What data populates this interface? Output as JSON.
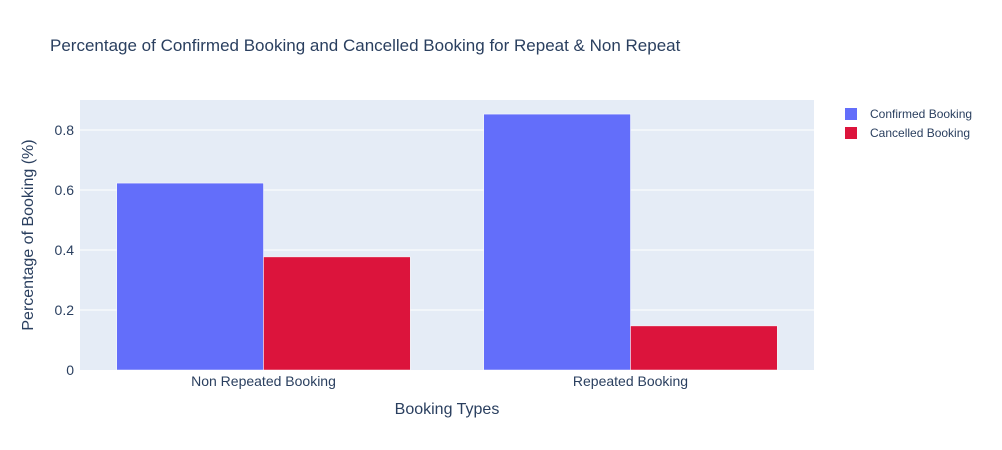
{
  "chart_data": {
    "type": "bar",
    "title": "Percentage of Confirmed Booking and Cancelled Booking for Repeat & Non Repeat",
    "xlabel": "Booking Types",
    "ylabel": "Percentage of Booking (%)",
    "categories": [
      "Non Repeated Booking",
      "Repeated Booking"
    ],
    "series": [
      {
        "name": "Confirmed Booking",
        "color": "#636efa",
        "values": [
          0.623,
          0.853
        ]
      },
      {
        "name": "Cancelled Booking",
        "color": "#dc143c",
        "values": [
          0.377,
          0.147
        ]
      }
    ],
    "ylim": [
      0,
      0.9
    ],
    "yticks": [
      0,
      0.2,
      0.4,
      0.6,
      0.8
    ],
    "ytick_labels": [
      "0",
      "0.2",
      "0.4",
      "0.6",
      "0.8"
    ],
    "grid": true,
    "legend_position": "top-right",
    "plot_background": "#e5ecf6"
  }
}
